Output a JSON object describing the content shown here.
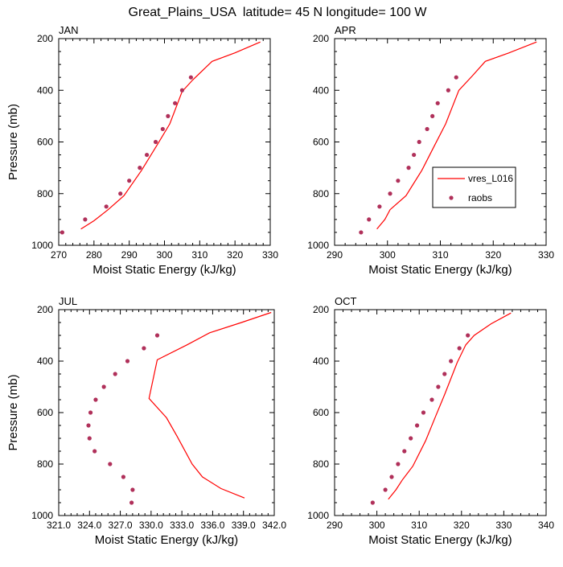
{
  "title": "Great_Plains_USA  latitude= 45 N longitude= 100 W",
  "colors": {
    "model": "#ff0000",
    "obs": "#b0305a",
    "axis": "#000000"
  },
  "legend": {
    "model_label": "vres_L016",
    "obs_label": "raobs"
  },
  "chart_data": [
    {
      "type": "scatter",
      "title": "JAN",
      "xlabel": "Moist Static Energy (kJ/kg)",
      "ylabel": "Pressure (mb)",
      "xlim": [
        270,
        330
      ],
      "ylim": [
        1000,
        200
      ],
      "xticks": [
        "270",
        "280",
        "290",
        "300",
        "310",
        "320",
        "330"
      ],
      "yticks": [
        "200",
        "400",
        "600",
        "800",
        "1000"
      ],
      "series": [
        {
          "name": "vres_L016",
          "style": "line",
          "points": [
            [
              276.3,
              937
            ],
            [
              280,
              905
            ],
            [
              284,
              862
            ],
            [
              288.5,
              808
            ],
            [
              293.5,
              710
            ],
            [
              298,
              610
            ],
            [
              301.5,
              530
            ],
            [
              305,
              405
            ],
            [
              308,
              360
            ],
            [
              313.5,
              288
            ],
            [
              320,
              255
            ],
            [
              327.2,
              213
            ]
          ]
        },
        {
          "name": "raobs",
          "style": "markers",
          "points": [
            [
              271,
              950
            ],
            [
              277.5,
              900
            ],
            [
              283.5,
              850
            ],
            [
              287.5,
              800
            ],
            [
              290,
              750
            ],
            [
              293,
              700
            ],
            [
              295,
              650
            ],
            [
              297.5,
              600
            ],
            [
              299.5,
              550
            ],
            [
              301,
              500
            ],
            [
              303,
              450
            ],
            [
              305,
              400
            ],
            [
              307.5,
              350
            ]
          ]
        }
      ]
    },
    {
      "type": "scatter",
      "title": "APR",
      "xlabel": "Moist Static Energy (kJ/kg)",
      "ylabel": "",
      "xlim": [
        290,
        330
      ],
      "ylim": [
        1000,
        200
      ],
      "xticks": [
        "290",
        "300",
        "310",
        "320",
        "330"
      ],
      "yticks": [
        "200",
        "400",
        "600",
        "800",
        "1000"
      ],
      "series": [
        {
          "name": "vres_L016",
          "style": "line",
          "points": [
            [
              298,
              937
            ],
            [
              299.5,
              900
            ],
            [
              300.5,
              862
            ],
            [
              303.5,
              808
            ],
            [
              306.5,
              710
            ],
            [
              309,
              610
            ],
            [
              311,
              530
            ],
            [
              313.5,
              400
            ],
            [
              316,
              345
            ],
            [
              318.5,
              288
            ],
            [
              323,
              255
            ],
            [
              328.2,
              213
            ]
          ]
        },
        {
          "name": "raobs",
          "style": "markers",
          "points": [
            [
              295,
              950
            ],
            [
              296.5,
              900
            ],
            [
              298.5,
              850
            ],
            [
              300.5,
              800
            ],
            [
              302,
              750
            ],
            [
              304,
              700
            ],
            [
              305,
              650
            ],
            [
              306,
              600
            ],
            [
              307.5,
              550
            ],
            [
              308.5,
              500
            ],
            [
              309.5,
              450
            ],
            [
              311.5,
              400
            ],
            [
              313,
              350
            ]
          ]
        }
      ]
    },
    {
      "type": "scatter",
      "title": "JUL",
      "xlabel": "Moist Static Energy (kJ/kg)",
      "ylabel": "Pressure (mb)",
      "xlim": [
        321,
        342
      ],
      "ylim": [
        1000,
        200
      ],
      "xticks": [
        "321.0",
        "324.0",
        "327.0",
        "330.0",
        "333.0",
        "336.0",
        "339.0",
        "342.0"
      ],
      "yticks": [
        "200",
        "400",
        "600",
        "800",
        "1000"
      ],
      "series": [
        {
          "name": "vres_L016",
          "style": "line",
          "points": [
            [
              339.1,
              932
            ],
            [
              336.8,
              895
            ],
            [
              335,
              850
            ],
            [
              334,
              800
            ],
            [
              332.5,
              690
            ],
            [
              331.5,
              620
            ],
            [
              329.8,
              545
            ],
            [
              330.6,
              395
            ],
            [
              333.5,
              337
            ],
            [
              335.7,
              290
            ],
            [
              338.8,
              250
            ],
            [
              341.7,
              211
            ]
          ]
        },
        {
          "name": "raobs",
          "style": "markers",
          "points": [
            [
              328.1,
              950
            ],
            [
              328.2,
              900
            ],
            [
              327.3,
              850
            ],
            [
              326,
              800
            ],
            [
              324.5,
              750
            ],
            [
              324.0,
              700
            ],
            [
              323.9,
              650
            ],
            [
              324.1,
              600
            ],
            [
              324.6,
              550
            ],
            [
              325.4,
              500
            ],
            [
              326.5,
              450
            ],
            [
              327.7,
              400
            ],
            [
              329.3,
              350
            ],
            [
              330.6,
              300
            ]
          ]
        }
      ]
    },
    {
      "type": "scatter",
      "title": "OCT",
      "xlabel": "Moist Static Energy (kJ/kg)",
      "ylabel": "",
      "xlim": [
        290,
        340
      ],
      "ylim": [
        1000,
        200
      ],
      "xticks": [
        "290",
        "300",
        "310",
        "320",
        "330",
        "340"
      ],
      "yticks": [
        "200",
        "400",
        "600",
        "800",
        "1000"
      ],
      "series": [
        {
          "name": "vres_L016",
          "style": "line",
          "points": [
            [
              302.7,
              937
            ],
            [
              304.5,
              900
            ],
            [
              306,
              862
            ],
            [
              308.5,
              808
            ],
            [
              311.5,
              710
            ],
            [
              314,
              610
            ],
            [
              316,
              530
            ],
            [
              319,
              405
            ],
            [
              321,
              337
            ],
            [
              323,
              300
            ],
            [
              327,
              255
            ],
            [
              331.7,
              213
            ]
          ]
        },
        {
          "name": "raobs",
          "style": "markers",
          "points": [
            [
              299,
              950
            ],
            [
              302,
              900
            ],
            [
              303.5,
              850
            ],
            [
              305,
              800
            ],
            [
              306.5,
              750
            ],
            [
              308,
              700
            ],
            [
              309.5,
              650
            ],
            [
              311,
              600
            ],
            [
              313,
              550
            ],
            [
              314.5,
              500
            ],
            [
              316,
              450
            ],
            [
              317.5,
              400
            ],
            [
              319.5,
              350
            ],
            [
              321.5,
              300
            ]
          ]
        }
      ]
    }
  ]
}
